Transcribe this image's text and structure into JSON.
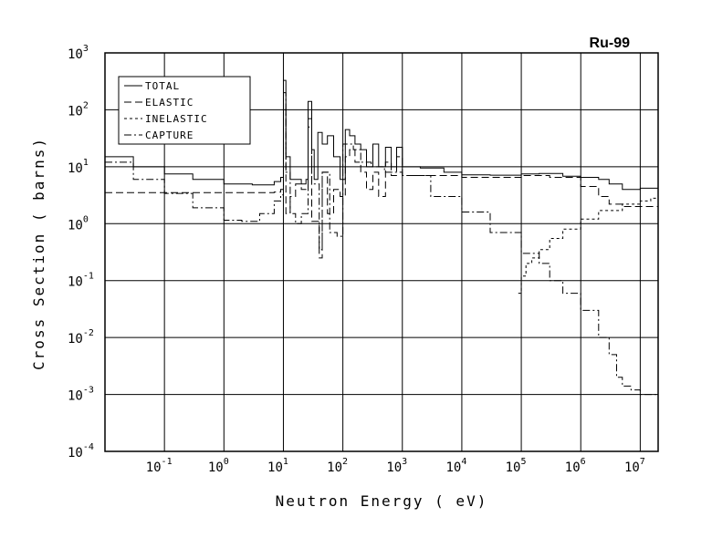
{
  "chart_data": {
    "type": "line",
    "title": "Ru-99",
    "xlabel": "Neutron Energy ( eV)",
    "ylabel": "Cross Section ( barns)",
    "x_scale": "log",
    "y_scale": "log",
    "xlim": [
      0.01,
      20000000
    ],
    "ylim": [
      0.0001,
      1000
    ],
    "grid": true,
    "legend_position": "top-left",
    "x_ticks": [
      {
        "base": "10",
        "exp": "-1"
      },
      {
        "base": "10",
        "exp": "0"
      },
      {
        "base": "10",
        "exp": "1"
      },
      {
        "base": "10",
        "exp": "2"
      },
      {
        "base": "10",
        "exp": "3"
      },
      {
        "base": "10",
        "exp": "4"
      },
      {
        "base": "10",
        "exp": "5"
      },
      {
        "base": "10",
        "exp": "6"
      },
      {
        "base": "10",
        "exp": "7"
      }
    ],
    "y_ticks": [
      {
        "base": "10",
        "exp": "3"
      },
      {
        "base": "10",
        "exp": "2"
      },
      {
        "base": "10",
        "exp": "1"
      },
      {
        "base": "10",
        "exp": "0"
      },
      {
        "base": "10",
        "exp": "-1"
      },
      {
        "base": "10",
        "exp": "-2"
      },
      {
        "base": "10",
        "exp": "-3"
      },
      {
        "base": "10",
        "exp": "-4"
      }
    ],
    "series": [
      {
        "name": "TOTAL",
        "dash": "",
        "x": [
          0.01,
          0.03,
          0.1,
          0.3,
          1,
          3,
          7,
          9,
          10,
          11,
          13,
          16,
          20,
          24,
          26,
          30,
          33,
          38,
          45,
          55,
          70,
          90,
          110,
          130,
          160,
          200,
          250,
          320,
          400,
          520,
          650,
          800,
          1000,
          2000,
          5000,
          10000,
          30000,
          100000,
          200000,
          500000,
          1000000,
          2000000,
          3000000,
          5000000,
          10000000,
          20000000
        ],
        "y": [
          15,
          10,
          7.5,
          6,
          5,
          4.8,
          5.5,
          6.5,
          330,
          15,
          6,
          6,
          5,
          6,
          140,
          20,
          6,
          40,
          25,
          35,
          15,
          6,
          45,
          35,
          25,
          20,
          10,
          25,
          10,
          22,
          10,
          22,
          10,
          9.5,
          8,
          7.2,
          7.1,
          7.5,
          7.6,
          6.8,
          6.5,
          6,
          5,
          4,
          4.2,
          4
        ]
      },
      {
        "name": "ELASTIC",
        "dash": "8,4",
        "x": [
          0.01,
          0.03,
          0.1,
          0.3,
          1,
          3,
          7,
          9,
          10,
          11,
          13,
          16,
          20,
          26,
          30,
          40,
          45,
          55,
          70,
          90,
          110,
          130,
          160,
          200,
          250,
          320,
          400,
          520,
          650,
          800,
          1000,
          10000,
          100000,
          300000,
          1000000,
          2000000,
          3000000,
          5000000,
          10000000,
          20000000
        ],
        "y": [
          3.5,
          3.5,
          3.5,
          3.5,
          3.5,
          3.5,
          3.6,
          4,
          100,
          1.5,
          3,
          5,
          4,
          70,
          1.1,
          0.25,
          8,
          1.5,
          4,
          3,
          15,
          20,
          12,
          8,
          4,
          8,
          3,
          12,
          7,
          15,
          7,
          6.5,
          7,
          6.5,
          4.5,
          3,
          2.2,
          2,
          2,
          2.5
        ]
      },
      {
        "name": "INELASTIC",
        "dash": "3,3",
        "x": [
          89000,
          100000,
          120000,
          150000,
          200000,
          300000,
          500000,
          1000000,
          2000000,
          5000000,
          10000000,
          15000000,
          20000000
        ],
        "y": [
          0.06,
          0.12,
          0.2,
          0.25,
          0.35,
          0.55,
          0.8,
          1.2,
          1.7,
          2.2,
          2.5,
          2.8,
          3
        ]
      },
      {
        "name": "CAPTURE",
        "dash": "8,3,2,3",
        "x": [
          0.01,
          0.03,
          0.1,
          0.3,
          1,
          2,
          4,
          7,
          9,
          10,
          11,
          13,
          16,
          20,
          26,
          30,
          40,
          45,
          60,
          80,
          100,
          150,
          200,
          300,
          500,
          1000,
          3000,
          10000,
          30000,
          100000,
          200000,
          300000,
          500000,
          1000000,
          2000000,
          3000000,
          4000000,
          5000000,
          7000000,
          10000000,
          14000000,
          20000000
        ],
        "y": [
          12,
          6,
          3.4,
          1.9,
          1.15,
          1.1,
          1.5,
          2.5,
          3.2,
          200,
          8,
          1.5,
          1,
          1.5,
          50,
          5,
          0.35,
          8,
          0.7,
          0.6,
          25,
          20,
          12,
          10,
          8,
          7,
          3,
          1.6,
          0.7,
          0.3,
          0.2,
          0.1,
          0.06,
          0.03,
          0.01,
          0.005,
          0.002,
          0.0014,
          0.0012,
          0.001,
          0.001,
          0.0011
        ]
      }
    ]
  }
}
